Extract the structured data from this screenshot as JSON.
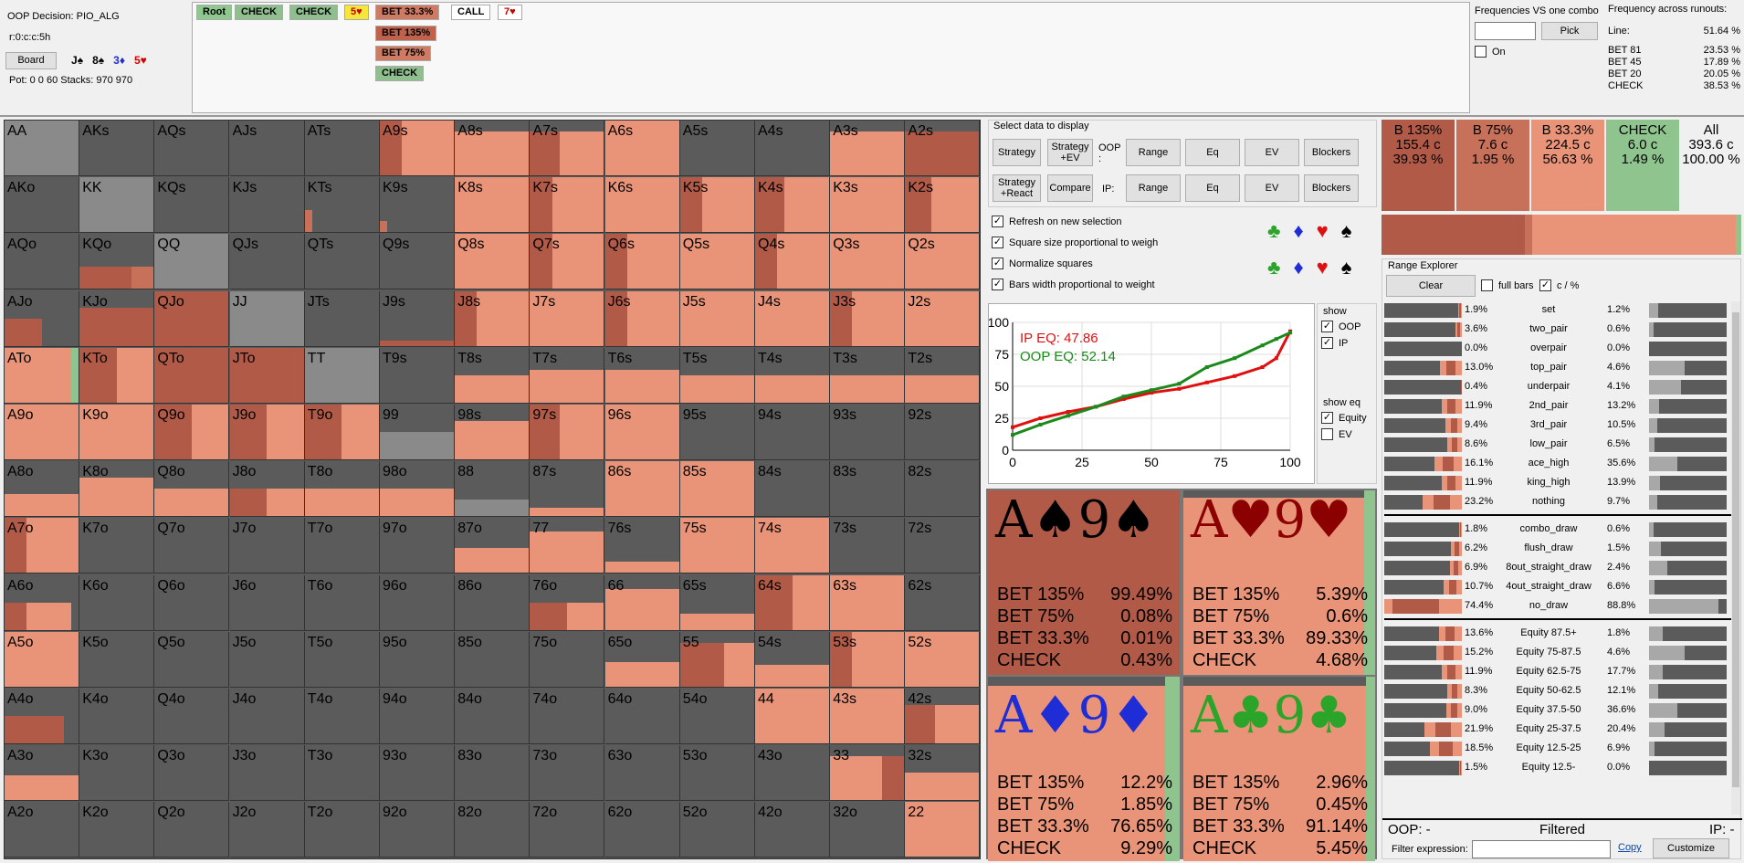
{
  "top": {
    "decision": "OOP Decision:  PIO_ALG",
    "board_string": "r:0:c:c:5h",
    "board_button": "Board",
    "board_cards": [
      {
        "rank": "J",
        "suit": "♠",
        "color": "#000000"
      },
      {
        "rank": "8",
        "suit": "♠",
        "color": "#000000"
      },
      {
        "rank": "3",
        "suit": "♦",
        "color": "#1f2dd6"
      },
      {
        "rank": "5",
        "suit": "♥",
        "color": "#d40000"
      }
    ],
    "pot_stacks": "Pot: 0 0 60 Stacks: 970 970",
    "tree": {
      "root": "Root",
      "check1": "CHECK",
      "check2": "CHECK",
      "turn_card": "5♥",
      "bet33": "BET 33.3%",
      "bet135": "BET 135%",
      "bet75": "BET 75%",
      "check_opt": "CHECK",
      "call": "CALL",
      "river_card": "7♥"
    },
    "combo_freq": {
      "title": "Frequencies VS one combo",
      "input_value": "",
      "pick_button": "Pick",
      "on_label": "On"
    },
    "runouts": {
      "title": "Frequency across runouts:",
      "rows": [
        {
          "label": "Line:",
          "value": "51.64 %"
        },
        {
          "label": "BET 81",
          "value": "23.53 %"
        },
        {
          "label": "BET 45",
          "value": "17.89 %"
        },
        {
          "label": "BET 20",
          "value": "20.05 %"
        },
        {
          "label": "CHECK",
          "value": "38.53 %"
        }
      ]
    }
  },
  "grid": {
    "rows": [
      [
        "AA",
        "AKs",
        "AQs",
        "AJs",
        "ATs",
        "A9s",
        "A8s",
        "A7s",
        "A6s",
        "A5s",
        "A4s",
        "A3s",
        "A2s"
      ],
      [
        "AKo",
        "KK",
        "KQs",
        "KJs",
        "KTs",
        "K9s",
        "K8s",
        "K7s",
        "K6s",
        "K5s",
        "K4s",
        "K3s",
        "K2s"
      ],
      [
        "AQo",
        "KQo",
        "QQ",
        "QJs",
        "QTs",
        "Q9s",
        "Q8s",
        "Q7s",
        "Q6s",
        "Q5s",
        "Q4s",
        "Q3s",
        "Q2s"
      ],
      [
        "AJo",
        "KJo",
        "QJo",
        "JJ",
        "JTs",
        "J9s",
        "J8s",
        "J7s",
        "J6s",
        "J5s",
        "J4s",
        "J3s",
        "J2s"
      ],
      [
        "ATo",
        "KTo",
        "QTo",
        "JTo",
        "TT",
        "T9s",
        "T8s",
        "T7s",
        "T6s",
        "T5s",
        "T4s",
        "T3s",
        "T2s"
      ],
      [
        "A9o",
        "K9o",
        "Q9o",
        "J9o",
        "T9o",
        "99",
        "98s",
        "97s",
        "96s",
        "95s",
        "94s",
        "93s",
        "92s"
      ],
      [
        "A8o",
        "K8o",
        "Q8o",
        "J8o",
        "T8o",
        "98o",
        "88",
        "87s",
        "86s",
        "85s",
        "84s",
        "83s",
        "82s"
      ],
      [
        "A7o",
        "K7o",
        "Q7o",
        "J7o",
        "T7o",
        "97o",
        "87o",
        "77",
        "76s",
        "75s",
        "74s",
        "73s",
        "72s"
      ],
      [
        "A6o",
        "K6o",
        "Q6o",
        "J6o",
        "T6o",
        "96o",
        "86o",
        "76o",
        "66",
        "65s",
        "64s",
        "63s",
        "62s"
      ],
      [
        "A5o",
        "K5o",
        "Q5o",
        "J5o",
        "T5o",
        "95o",
        "85o",
        "75o",
        "65o",
        "55",
        "54s",
        "53s",
        "52s"
      ],
      [
        "A4o",
        "K4o",
        "Q4o",
        "J4o",
        "T4o",
        "94o",
        "84o",
        "74o",
        "64o",
        "54o",
        "44",
        "43s",
        "42s"
      ],
      [
        "A3o",
        "K3o",
        "Q3o",
        "J3o",
        "T3o",
        "93o",
        "83o",
        "73o",
        "63o",
        "53o",
        "43o",
        "33",
        "32s"
      ],
      [
        "A2o",
        "K2o",
        "Q2o",
        "J2o",
        "T2o",
        "92o",
        "82o",
        "72o",
        "62o",
        "52o",
        "42o",
        "32o",
        "22"
      ]
    ]
  },
  "select": {
    "title": "Select data to display",
    "strategy": "Strategy",
    "strategy_ev": "Strategy +EV",
    "strategy_react": "Strategy +React",
    "compare": "Compare",
    "oop_label": "OOP :",
    "ip_label": "IP:",
    "range": "Range",
    "eq": "Eq",
    "ev": "EV",
    "blockers": "Blockers"
  },
  "options": {
    "refresh": "Refresh on new selection",
    "square": "Square size proportional to weigh",
    "normalize": "Normalize squares",
    "bars": "Bars width proportional to weight"
  },
  "suit_icons": [
    {
      "suit": "♣",
      "color": "#2aa52a"
    },
    {
      "suit": "♦",
      "color": "#1f2dd6"
    },
    {
      "suit": "♥",
      "color": "#e01010"
    },
    {
      "suit": "♠",
      "color": "#000000"
    }
  ],
  "equity_chart": {
    "ip_eq": "IP EQ: 47.86",
    "oop_eq": "OOP EQ: 52.14",
    "y_ticks": [
      "100",
      "75",
      "50",
      "25",
      "0"
    ],
    "x_ticks": [
      "0",
      "25",
      "50",
      "75",
      "100"
    ],
    "show_title": "show",
    "show_oop": "OOP",
    "show_ip": "IP",
    "show_eq_title": "show eq",
    "equity": "Equity",
    "ev": "EV"
  },
  "chart_data": {
    "type": "line",
    "xlim": [
      0,
      100
    ],
    "ylim": [
      0,
      100
    ],
    "series": [
      {
        "name": "IP EQ: 47.86",
        "color": "#e01010",
        "x": [
          0,
          10,
          20,
          30,
          40,
          50,
          60,
          70,
          80,
          90,
          95,
          100
        ],
        "y": [
          18,
          25,
          30,
          34,
          40,
          45,
          48,
          53,
          58,
          65,
          72,
          93
        ]
      },
      {
        "name": "OOP EQ: 52.14",
        "color": "#1a8a1a",
        "x": [
          0,
          10,
          20,
          30,
          40,
          50,
          60,
          70,
          80,
          90,
          95,
          100
        ],
        "y": [
          12,
          20,
          27,
          34,
          42,
          47,
          52,
          65,
          72,
          82,
          87,
          92
        ]
      }
    ]
  },
  "combos": [
    {
      "title_rank1": "A",
      "title_suit1": "♠",
      "title_rank2": "9",
      "title_suit2": "♠",
      "color": "#000000",
      "bg": "#b25a48",
      "rows": [
        {
          "a": "BET 135%",
          "v": "99.49%"
        },
        {
          "a": "BET 75%",
          "v": "0.08%"
        },
        {
          "a": "BET 33.3%",
          "v": "0.01%"
        },
        {
          "a": "CHECK",
          "v": "0.43%"
        }
      ]
    },
    {
      "title_rank1": "A",
      "title_suit1": "♥",
      "title_rank2": "9",
      "title_suit2": "♥",
      "color": "#8b0000",
      "bg": "#e99478",
      "rows": [
        {
          "a": "BET 135%",
          "v": "5.39%"
        },
        {
          "a": "BET 75%",
          "v": "0.6%"
        },
        {
          "a": "BET 33.3%",
          "v": "89.33%"
        },
        {
          "a": "CHECK",
          "v": "4.68%"
        }
      ]
    },
    {
      "title_rank1": "A",
      "title_suit1": "♦",
      "title_rank2": "9",
      "title_suit2": "♦",
      "color": "#1f2dd6",
      "bg": "#e99478",
      "rows": [
        {
          "a": "BET 135%",
          "v": "12.2%"
        },
        {
          "a": "BET 75%",
          "v": "1.85%"
        },
        {
          "a": "BET 33.3%",
          "v": "76.65%"
        },
        {
          "a": "CHECK",
          "v": "9.29%"
        }
      ]
    },
    {
      "title_rank1": "A",
      "title_suit1": "♣",
      "title_rank2": "9",
      "title_suit2": "♣",
      "color": "#2aa52a",
      "bg": "#e99478",
      "rows": [
        {
          "a": "BET 135%",
          "v": "2.96%"
        },
        {
          "a": "BET 75%",
          "v": "0.45%"
        },
        {
          "a": "BET 33.3%",
          "v": "91.14%"
        },
        {
          "a": "CHECK",
          "v": "5.45%"
        }
      ]
    }
  ],
  "summary": [
    {
      "label": "B 135%",
      "combos": "155.4 c",
      "pct": "39.93 %",
      "bg": "#b25a48"
    },
    {
      "label": "B 75%",
      "combos": "7.6 c",
      "pct": "1.95 %",
      "bg": "#c7705a"
    },
    {
      "label": "B 33.3%",
      "combos": "224.5 c",
      "pct": "56.63 %",
      "bg": "#e99478"
    },
    {
      "label": "CHECK",
      "combos": "6.0 c",
      "pct": "1.49 %",
      "bg": "#8fc48f"
    },
    {
      "label": "All",
      "combos": "393.6 c",
      "pct": "100.00 %",
      "bg": "#f0f0f0"
    }
  ],
  "range_explorer": {
    "title": "Range Explorer",
    "clear": "Clear",
    "full_bars": "full bars",
    "c_pct": "c / %",
    "hands": [
      {
        "l": "1.9%",
        "name": "set",
        "r": "1.2%",
        "fill": 0.12
      },
      {
        "l": "3.6%",
        "name": "two_pair",
        "r": "0.6%",
        "fill": 0.06
      },
      {
        "l": "0.0%",
        "name": "overpair",
        "r": "0.0%",
        "fill": 0.0
      },
      {
        "l": "13.0%",
        "name": "top_pair",
        "r": "4.6%",
        "fill": 0.46
      },
      {
        "l": "0.4%",
        "name": "underpair",
        "r": "4.1%",
        "fill": 0.41
      },
      {
        "l": "11.9%",
        "name": "2nd_pair",
        "r": "13.2%",
        "fill": 0.13
      },
      {
        "l": "9.4%",
        "name": "3rd_pair",
        "r": "10.5%",
        "fill": 0.1
      },
      {
        "l": "8.6%",
        "name": "low_pair",
        "r": "6.5%",
        "fill": 0.065
      },
      {
        "l": "16.1%",
        "name": "ace_high",
        "r": "35.6%",
        "fill": 0.36
      },
      {
        "l": "11.9%",
        "name": "king_high",
        "r": "13.9%",
        "fill": 0.14
      },
      {
        "l": "23.2%",
        "name": "nothing",
        "r": "9.7%",
        "fill": 0.1
      }
    ],
    "draws": [
      {
        "l": "1.8%",
        "name": "combo_draw",
        "r": "0.6%",
        "fill": 0.06
      },
      {
        "l": "6.2%",
        "name": "flush_draw",
        "r": "1.5%",
        "fill": 0.15
      },
      {
        "l": "6.9%",
        "name": "8out_straight_draw",
        "r": "2.4%",
        "fill": 0.24
      },
      {
        "l": "10.7%",
        "name": "4out_straight_draw",
        "r": "6.6%",
        "fill": 0.066
      },
      {
        "l": "74.4%",
        "name": "no_draw",
        "r": "88.8%",
        "fill": 0.89
      }
    ],
    "equity": [
      {
        "l": "13.6%",
        "name": "Equity 87.5+",
        "r": "1.8%",
        "fill": 0.18
      },
      {
        "l": "15.2%",
        "name": "Equity 75-87.5",
        "r": "4.6%",
        "fill": 0.46
      },
      {
        "l": "11.9%",
        "name": "Equity 62.5-75",
        "r": "17.7%",
        "fill": 0.18
      },
      {
        "l": "8.3%",
        "name": "Equity 50-62.5",
        "r": "12.1%",
        "fill": 0.12
      },
      {
        "l": "9.0%",
        "name": "Equity 37.5-50",
        "r": "36.6%",
        "fill": 0.37
      },
      {
        "l": "21.9%",
        "name": "Equity 25-37.5",
        "r": "20.4%",
        "fill": 0.2
      },
      {
        "l": "18.5%",
        "name": "Equity 12.5-25",
        "r": "6.9%",
        "fill": 0.069
      },
      {
        "l": "1.5%",
        "name": "Equity 12.5-",
        "r": "0.0%",
        "fill": 0.0
      }
    ],
    "oop": "OOP: -",
    "filtered": "Filtered",
    "ip": "IP: -",
    "filter_label": "Filter expression:",
    "filter_value": "",
    "copy": "Copy",
    "customize": "Customize"
  },
  "colors": {
    "bet135": "#b25a48",
    "bet75": "#c7705a",
    "bet33": "#e99478",
    "check": "#8fc48f",
    "empty": "#5b5b5b",
    "pair_grey": "#8a8a8a"
  }
}
